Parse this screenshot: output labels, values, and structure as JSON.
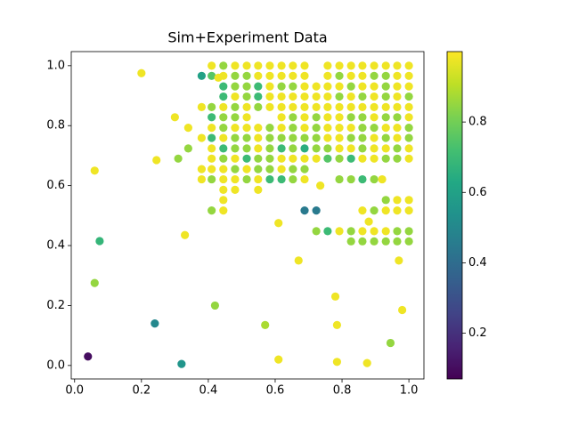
{
  "chart_data": {
    "type": "scatter",
    "title": "Sim+Experiment Data",
    "colormap": "viridis",
    "x": [
      0.41,
      0.445,
      0.48,
      0.515,
      0.549,
      0.584,
      0.619,
      0.653,
      0.688,
      0.757,
      0.792,
      0.827,
      0.861,
      0.896,
      0.931,
      0.965,
      1.0,
      0.38,
      0.41,
      0.43,
      0.445,
      0.48,
      0.515,
      0.549,
      0.584,
      0.619,
      0.653,
      0.688,
      0.757,
      0.792,
      0.827,
      0.861,
      0.896,
      0.931,
      0.965,
      1.0,
      0.445,
      0.48,
      0.515,
      0.549,
      0.584,
      0.619,
      0.653,
      0.688,
      0.723,
      0.757,
      0.792,
      0.827,
      0.861,
      0.896,
      0.931,
      0.965,
      1.0,
      0.445,
      0.48,
      0.515,
      0.549,
      0.584,
      0.619,
      0.653,
      0.688,
      0.723,
      0.757,
      0.792,
      0.827,
      0.861,
      0.896,
      0.931,
      0.965,
      1.0,
      0.38,
      0.41,
      0.445,
      0.48,
      0.515,
      0.549,
      0.584,
      0.619,
      0.653,
      0.688,
      0.723,
      0.757,
      0.792,
      0.827,
      0.861,
      0.896,
      0.931,
      0.965,
      1.0,
      0.3,
      0.41,
      0.445,
      0.48,
      0.515,
      0.619,
      0.653,
      0.688,
      0.723,
      0.757,
      0.792,
      0.827,
      0.861,
      0.896,
      0.931,
      0.965,
      1.0,
      0.34,
      0.41,
      0.445,
      0.48,
      0.515,
      0.549,
      0.584,
      0.619,
      0.653,
      0.688,
      0.723,
      0.757,
      0.792,
      0.827,
      0.861,
      0.896,
      0.931,
      0.965,
      1.0,
      0.38,
      0.41,
      0.445,
      0.48,
      0.515,
      0.549,
      0.584,
      0.619,
      0.653,
      0.688,
      0.723,
      0.757,
      0.792,
      0.827,
      0.861,
      0.896,
      0.931,
      0.965,
      1.0,
      0.34,
      0.41,
      0.445,
      0.48,
      0.515,
      0.549,
      0.584,
      0.619,
      0.653,
      0.688,
      0.723,
      0.757,
      0.792,
      0.827,
      0.861,
      0.896,
      0.931,
      0.965,
      1.0,
      0.31,
      0.41,
      0.445,
      0.48,
      0.515,
      0.549,
      0.584,
      0.619,
      0.653,
      0.688,
      0.723,
      0.757,
      0.792,
      0.827,
      0.861,
      0.896,
      0.931,
      0.965,
      1.0,
      0.38,
      0.41,
      0.445,
      0.48,
      0.515,
      0.549,
      0.584,
      0.619,
      0.653,
      0.688,
      0.38,
      0.41,
      0.445,
      0.48,
      0.515,
      0.549,
      0.584,
      0.619,
      0.653,
      0.688,
      0.792,
      0.827,
      0.861,
      0.896,
      0.92,
      0.445,
      0.48,
      0.549,
      0.735,
      0.445,
      0.931,
      0.965,
      1.0,
      0.41,
      0.445,
      0.688,
      0.723,
      0.861,
      0.896,
      0.931,
      0.965,
      1.0,
      0.723,
      0.757,
      0.792,
      0.827,
      0.861,
      0.896,
      0.931,
      0.965,
      1.0,
      0.827,
      0.861,
      0.896,
      0.931,
      0.965,
      1.0,
      0.2,
      0.245,
      0.06,
      0.61,
      0.88,
      0.33,
      0.075,
      0.67,
      0.97,
      0.06,
      0.78,
      0.42,
      0.98,
      0.24,
      0.57,
      0.785,
      0.945,
      0.04,
      0.61,
      0.785,
      0.32,
      0.875
    ],
    "y": [
      1.0,
      1.0,
      1.0,
      1.0,
      1.0,
      1.0,
      1.0,
      1.0,
      1.0,
      1.0,
      1.0,
      1.0,
      1.0,
      1.0,
      1.0,
      1.0,
      1.0,
      0.966,
      0.966,
      0.96,
      0.966,
      0.966,
      0.966,
      0.966,
      0.966,
      0.966,
      0.966,
      0.966,
      0.966,
      0.966,
      0.966,
      0.966,
      0.966,
      0.966,
      0.966,
      0.966,
      0.931,
      0.931,
      0.931,
      0.931,
      0.931,
      0.931,
      0.931,
      0.931,
      0.931,
      0.931,
      0.931,
      0.931,
      0.931,
      0.931,
      0.931,
      0.931,
      0.931,
      0.897,
      0.897,
      0.897,
      0.897,
      0.897,
      0.897,
      0.897,
      0.897,
      0.897,
      0.897,
      0.897,
      0.897,
      0.897,
      0.897,
      0.897,
      0.897,
      0.897,
      0.862,
      0.862,
      0.862,
      0.862,
      0.862,
      0.862,
      0.862,
      0.862,
      0.862,
      0.862,
      0.862,
      0.862,
      0.862,
      0.862,
      0.862,
      0.862,
      0.862,
      0.862,
      0.862,
      0.828,
      0.828,
      0.828,
      0.828,
      0.828,
      0.828,
      0.828,
      0.828,
      0.828,
      0.828,
      0.828,
      0.828,
      0.828,
      0.828,
      0.828,
      0.828,
      0.828,
      0.793,
      0.793,
      0.793,
      0.793,
      0.793,
      0.793,
      0.793,
      0.793,
      0.793,
      0.793,
      0.793,
      0.793,
      0.793,
      0.793,
      0.793,
      0.793,
      0.793,
      0.793,
      0.793,
      0.759,
      0.759,
      0.759,
      0.759,
      0.759,
      0.759,
      0.759,
      0.759,
      0.759,
      0.759,
      0.759,
      0.759,
      0.759,
      0.759,
      0.759,
      0.759,
      0.759,
      0.759,
      0.759,
      0.724,
      0.724,
      0.724,
      0.724,
      0.724,
      0.724,
      0.724,
      0.724,
      0.724,
      0.724,
      0.724,
      0.724,
      0.724,
      0.724,
      0.724,
      0.724,
      0.724,
      0.724,
      0.724,
      0.69,
      0.69,
      0.69,
      0.69,
      0.69,
      0.69,
      0.69,
      0.69,
      0.69,
      0.69,
      0.69,
      0.69,
      0.69,
      0.69,
      0.69,
      0.69,
      0.69,
      0.69,
      0.69,
      0.655,
      0.655,
      0.655,
      0.655,
      0.655,
      0.655,
      0.655,
      0.655,
      0.655,
      0.655,
      0.621,
      0.621,
      0.621,
      0.621,
      0.621,
      0.621,
      0.621,
      0.621,
      0.621,
      0.621,
      0.621,
      0.621,
      0.621,
      0.621,
      0.621,
      0.586,
      0.586,
      0.586,
      0.6,
      0.552,
      0.552,
      0.552,
      0.552,
      0.517,
      0.517,
      0.517,
      0.517,
      0.517,
      0.517,
      0.517,
      0.517,
      0.517,
      0.448,
      0.448,
      0.448,
      0.448,
      0.448,
      0.448,
      0.448,
      0.448,
      0.448,
      0.414,
      0.414,
      0.414,
      0.414,
      0.414,
      0.414,
      0.975,
      0.685,
      0.65,
      0.475,
      0.48,
      0.435,
      0.415,
      0.35,
      0.35,
      0.275,
      0.23,
      0.2,
      0.185,
      0.14,
      0.135,
      0.135,
      0.075,
      0.03,
      0.02,
      0.012,
      0.005,
      0.008
    ],
    "c": [
      0.98,
      0.85,
      0.98,
      0.98,
      0.98,
      0.98,
      0.98,
      0.98,
      0.98,
      0.98,
      0.98,
      0.98,
      0.98,
      0.98,
      0.98,
      0.98,
      0.98,
      0.6,
      0.75,
      0.98,
      0.98,
      0.85,
      0.85,
      0.98,
      0.98,
      0.98,
      0.98,
      0.98,
      0.98,
      0.85,
      0.98,
      0.98,
      0.85,
      0.85,
      0.98,
      0.98,
      0.7,
      0.85,
      0.85,
      0.7,
      0.98,
      0.85,
      0.85,
      0.98,
      0.98,
      0.98,
      0.98,
      0.85,
      0.98,
      0.98,
      0.85,
      0.98,
      0.98,
      0.7,
      0.98,
      0.85,
      0.7,
      0.98,
      0.98,
      0.98,
      0.98,
      0.98,
      0.98,
      0.85,
      0.98,
      0.85,
      0.98,
      0.85,
      0.98,
      0.85,
      0.98,
      0.85,
      0.98,
      0.85,
      0.98,
      0.85,
      0.98,
      0.98,
      0.98,
      0.98,
      0.98,
      0.98,
      0.98,
      0.98,
      0.98,
      0.98,
      0.98,
      0.98,
      0.98,
      0.98,
      0.7,
      0.85,
      0.85,
      0.98,
      0.98,
      0.85,
      0.98,
      0.85,
      0.98,
      0.98,
      0.85,
      0.85,
      0.98,
      0.85,
      0.85,
      0.98,
      0.98,
      0.98,
      0.85,
      0.98,
      0.98,
      0.98,
      0.85,
      0.98,
      0.85,
      0.98,
      0.85,
      0.98,
      0.98,
      0.98,
      0.85,
      0.85,
      0.98,
      0.98,
      0.85,
      0.98,
      0.7,
      0.98,
      0.85,
      0.85,
      0.98,
      0.85,
      0.85,
      0.85,
      0.85,
      0.85,
      0.98,
      0.98,
      0.85,
      0.85,
      0.98,
      0.85,
      0.98,
      0.85,
      0.85,
      0.98,
      0.7,
      0.85,
      0.85,
      0.98,
      0.85,
      0.7,
      0.85,
      0.65,
      0.85,
      0.85,
      0.98,
      0.98,
      0.85,
      0.98,
      0.98,
      0.85,
      0.98,
      0.85,
      0.98,
      0.85,
      0.98,
      0.7,
      0.85,
      0.85,
      0.98,
      0.98,
      0.98,
      0.98,
      0.75,
      0.85,
      0.7,
      0.98,
      0.98,
      0.85,
      0.85,
      0.98,
      0.98,
      0.98,
      0.98,
      0.85,
      0.98,
      0.85,
      0.85,
      0.98,
      0.85,
      0.85,
      0.98,
      0.85,
      0.98,
      0.98,
      0.85,
      0.98,
      0.7,
      0.7,
      0.85,
      0.98,
      0.85,
      0.85,
      0.7,
      0.85,
      0.98,
      0.98,
      0.98,
      0.98,
      0.98,
      0.98,
      0.85,
      0.98,
      0.98,
      0.85,
      0.98,
      0.45,
      0.45,
      0.98,
      0.85,
      0.98,
      0.98,
      0.98,
      0.85,
      0.7,
      0.98,
      0.85,
      0.98,
      0.98,
      0.98,
      0.85,
      0.85,
      0.85,
      0.85,
      0.85,
      0.85,
      0.85,
      0.85,
      0.98,
      0.98,
      0.98,
      0.98,
      0.98,
      0.98,
      0.68,
      0.98,
      0.98,
      0.85,
      0.98,
      0.85,
      0.98,
      0.5,
      0.88,
      0.98,
      0.85,
      0.1,
      0.98,
      0.98,
      0.55,
      0.98
    ],
    "xlim": [
      -0.01,
      1.045
    ],
    "ylim": [
      -0.045,
      1.047
    ],
    "xticks": [
      {
        "value": 0,
        "label": "0.0"
      },
      0.2,
      0.4,
      0.6,
      0.8,
      {
        "value": 1,
        "label": "1.0"
      }
    ],
    "yticks": [
      {
        "value": 0,
        "label": "0.0"
      },
      0.2,
      0.4,
      0.6,
      0.8,
      {
        "value": 1,
        "label": "1.0"
      }
    ],
    "clim": [
      0.07,
      1.0
    ],
    "cticks": [
      0.2,
      0.4,
      0.6,
      0.8
    ]
  }
}
